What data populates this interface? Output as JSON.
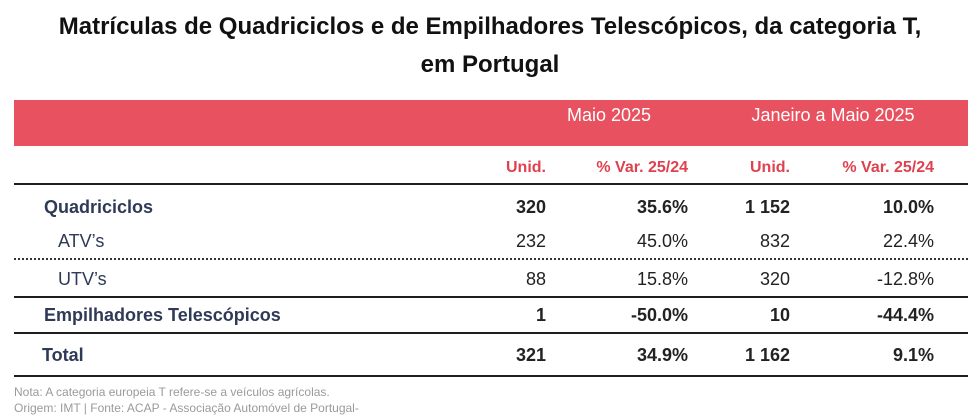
{
  "title": {
    "line1": "Matrículas de Quadriciclos e de Empilhadores Telescópicos, da categoria T,",
    "line2": "em Portugal"
  },
  "header": {
    "group1": "Maio 2025",
    "group2": "Janeiro a Maio 2025",
    "subheaders": [
      "Unid.",
      "% Var. 25/24",
      "Unid.",
      "% Var. 25/24"
    ]
  },
  "rows": [
    {
      "label": "Quadriciclos",
      "values": [
        "320",
        "35.6%",
        "1 152",
        "10.0%"
      ]
    },
    {
      "label": "ATV’s",
      "values": [
        "232",
        "45.0%",
        "832",
        "22.4%"
      ]
    },
    {
      "label": "UTV’s",
      "values": [
        "88",
        "15.8%",
        "320",
        "-12.8%"
      ]
    },
    {
      "label": "Empilhadores Telescópicos",
      "values": [
        "1",
        "-50.0%",
        "10",
        "-44.4%"
      ]
    },
    {
      "label": "Total",
      "values": [
        "321",
        "34.9%",
        "1 162",
        "9.1%"
      ]
    }
  ],
  "notes": {
    "nota": "Nota: A categoria europeia T refere-se a veículos agrícolas.",
    "origem": "Origem: IMT | Fonte: ACAP - Associação Automóvel de Portugal-"
  },
  "colors": {
    "header_band": "#e8515f",
    "subheader_text": "#e0414f",
    "row_label_text": "#2f3a57"
  }
}
